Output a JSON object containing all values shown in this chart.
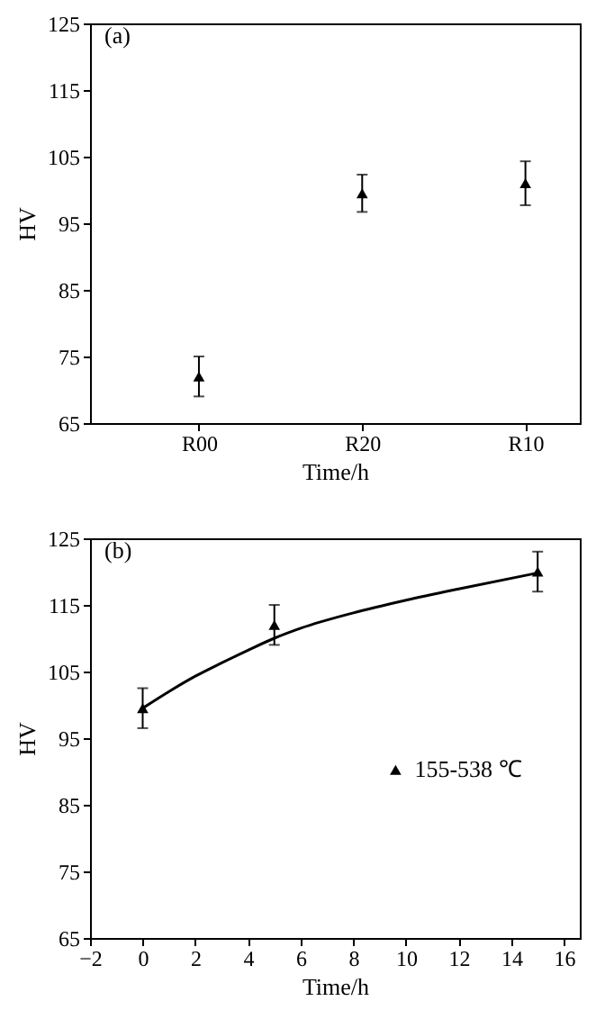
{
  "chart_data": [
    {
      "type": "scatter",
      "title": "(a)",
      "xlabel": "Time/h",
      "ylabel": "HV",
      "categories": [
        "R00",
        "R20",
        "R10"
      ],
      "series": [
        {
          "color": "#000000",
          "values": [
            72,
            99.5,
            101
          ],
          "errors": [
            3,
            2.8,
            3.3
          ]
        }
      ],
      "ylim": [
        65,
        125
      ],
      "yticks": [
        65,
        75,
        85,
        95,
        105,
        115,
        125
      ],
      "grid": false,
      "marker": "triangle"
    },
    {
      "type": "scatter",
      "title": "(b)",
      "xlabel": "Time/h",
      "ylabel": "HV",
      "series": [
        {
          "name": "155-538 ℃",
          "color": "#000000",
          "marker": "triangle",
          "x": [
            0,
            5,
            15
          ],
          "values": [
            99.5,
            112,
            120
          ],
          "errors": [
            3,
            3,
            3
          ]
        },
        {
          "type": "line",
          "color": "#000000",
          "x": [
            0,
            1,
            2,
            3,
            4,
            5,
            6,
            8,
            10,
            12,
            15
          ],
          "values": [
            99.5,
            102,
            104.3,
            106.3,
            108.2,
            110,
            111.5,
            113.8,
            115.7,
            117.4,
            119.8
          ]
        }
      ],
      "xlim": [
        -2,
        16.6
      ],
      "xticks": [
        -2,
        0,
        2,
        4,
        6,
        8,
        10,
        12,
        14,
        16
      ],
      "ylim": [
        65,
        125
      ],
      "yticks": [
        65,
        75,
        85,
        95,
        105,
        115,
        125
      ],
      "grid": false,
      "legend": "right",
      "line_style": "solid"
    }
  ]
}
